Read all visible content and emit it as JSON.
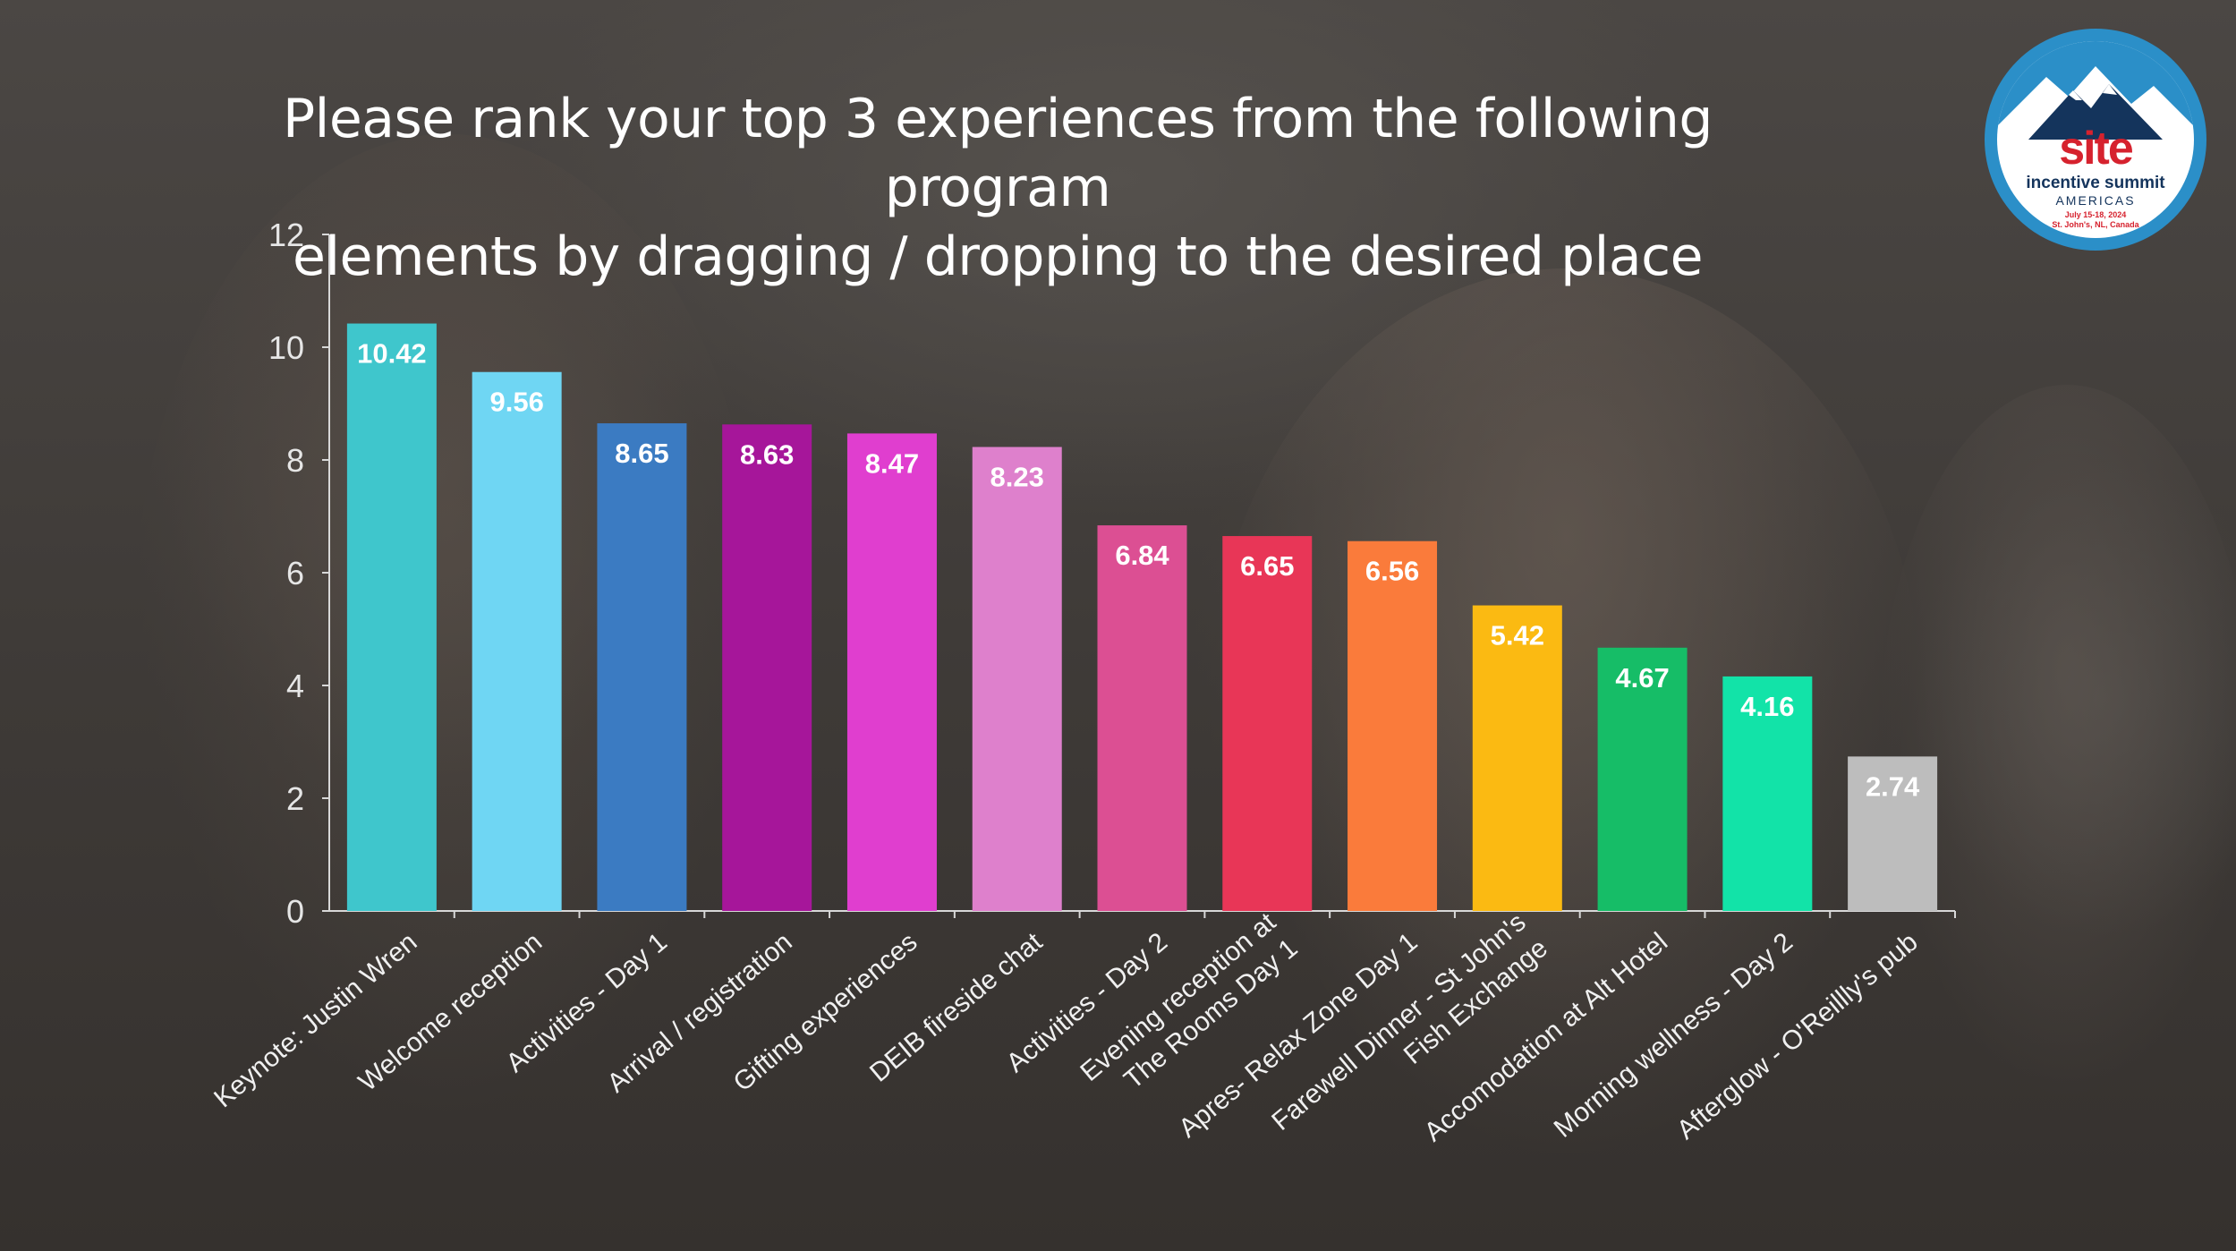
{
  "chart_data": {
    "type": "bar",
    "title": "Please rank your top 3 experiences from the following program elements by dragging / dropping to the desired place",
    "title_lines": [
      "Please rank your top 3 experiences from the following program",
      "elements by dragging / dropping to the desired place"
    ],
    "xlabel": "",
    "ylabel": "",
    "ylim": [
      0,
      12
    ],
    "yticks": [
      0,
      2,
      4,
      6,
      8,
      10,
      12
    ],
    "grid": false,
    "categories": [
      "Keynote: Justin Wren",
      "Welcome reception",
      "Activities - Day 1",
      "Arrival / registration",
      "Gifting experiences",
      "DEIB fireside chat",
      "Activities - Day 2",
      "Evening reception at The Rooms Day 1",
      "Apres- Relax Zone Day 1",
      "Farewell Dinner - St John's Fish Exchange",
      "Accomodation at Alt Hotel",
      "Morning wellness - Day 2",
      "Afterglow - O'Reillly's pub"
    ],
    "category_lines": [
      [
        "Keynote: Justin Wren"
      ],
      [
        "Welcome reception"
      ],
      [
        "Activities - Day 1"
      ],
      [
        "Arrival / registration"
      ],
      [
        "Gifting experiences"
      ],
      [
        "DEIB fireside chat"
      ],
      [
        "Activities - Day 2"
      ],
      [
        "Evening reception at",
        "The Rooms Day 1"
      ],
      [
        "Apres- Relax Zone Day 1"
      ],
      [
        "Farewell Dinner - St John's",
        "Fish Exchange"
      ],
      [
        "Accomodation at Alt Hotel"
      ],
      [
        "Morning wellness - Day 2"
      ],
      [
        "Afterglow - O'Reillly's pub"
      ]
    ],
    "values": [
      10.42,
      9.56,
      8.65,
      8.63,
      8.47,
      8.23,
      6.84,
      6.65,
      6.56,
      5.42,
      4.67,
      4.16,
      2.74
    ],
    "value_labels": [
      "10.42",
      "9.56",
      "8.65",
      "8.63",
      "8.47",
      "8.23",
      "6.84",
      "6.65",
      "6.56",
      "5.42",
      "4.67",
      "4.16",
      "2.74"
    ],
    "colors": [
      "#3fc6cc",
      "#6fd6f3",
      "#3b7bc2",
      "#a6169a",
      "#e03ecf",
      "#de80cc",
      "#dc4f93",
      "#e83657",
      "#fa7b3b",
      "#fbba12",
      "#16bd67",
      "#12e3a8",
      "#bdbdbd"
    ],
    "label_color": "#ffffff"
  },
  "logo": {
    "brand": "site",
    "line1": "incentive summit",
    "line2": "AMERICAS",
    "line3": "July 15-18, 2024",
    "line4": "St. John's, NL, Canada",
    "ring_color": "#2b8fc8",
    "brand_color": "#d6222e"
  }
}
